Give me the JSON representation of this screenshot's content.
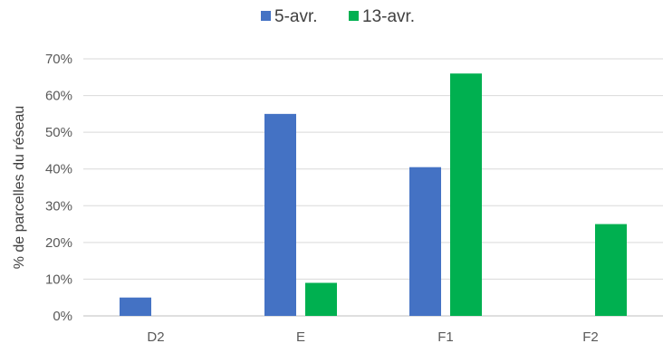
{
  "chart_data": {
    "type": "bar",
    "title": "",
    "xlabel": "",
    "ylabel": "% de parcelles du réseau",
    "categories": [
      "D2",
      "E",
      "F1",
      "F2"
    ],
    "series": [
      {
        "name": "5-avr.",
        "values": [
          5,
          55,
          40.5,
          null
        ],
        "color": "#4472C4"
      },
      {
        "name": "13-avr.",
        "values": [
          null,
          9,
          66,
          25
        ],
        "color": "#00B050"
      }
    ],
    "ylim": [
      0,
      70
    ],
    "yticks": [
      "0%",
      "10%",
      "20%",
      "30%",
      "40%",
      "50%",
      "60%",
      "70%"
    ],
    "grid": true,
    "legend_position": "top"
  }
}
